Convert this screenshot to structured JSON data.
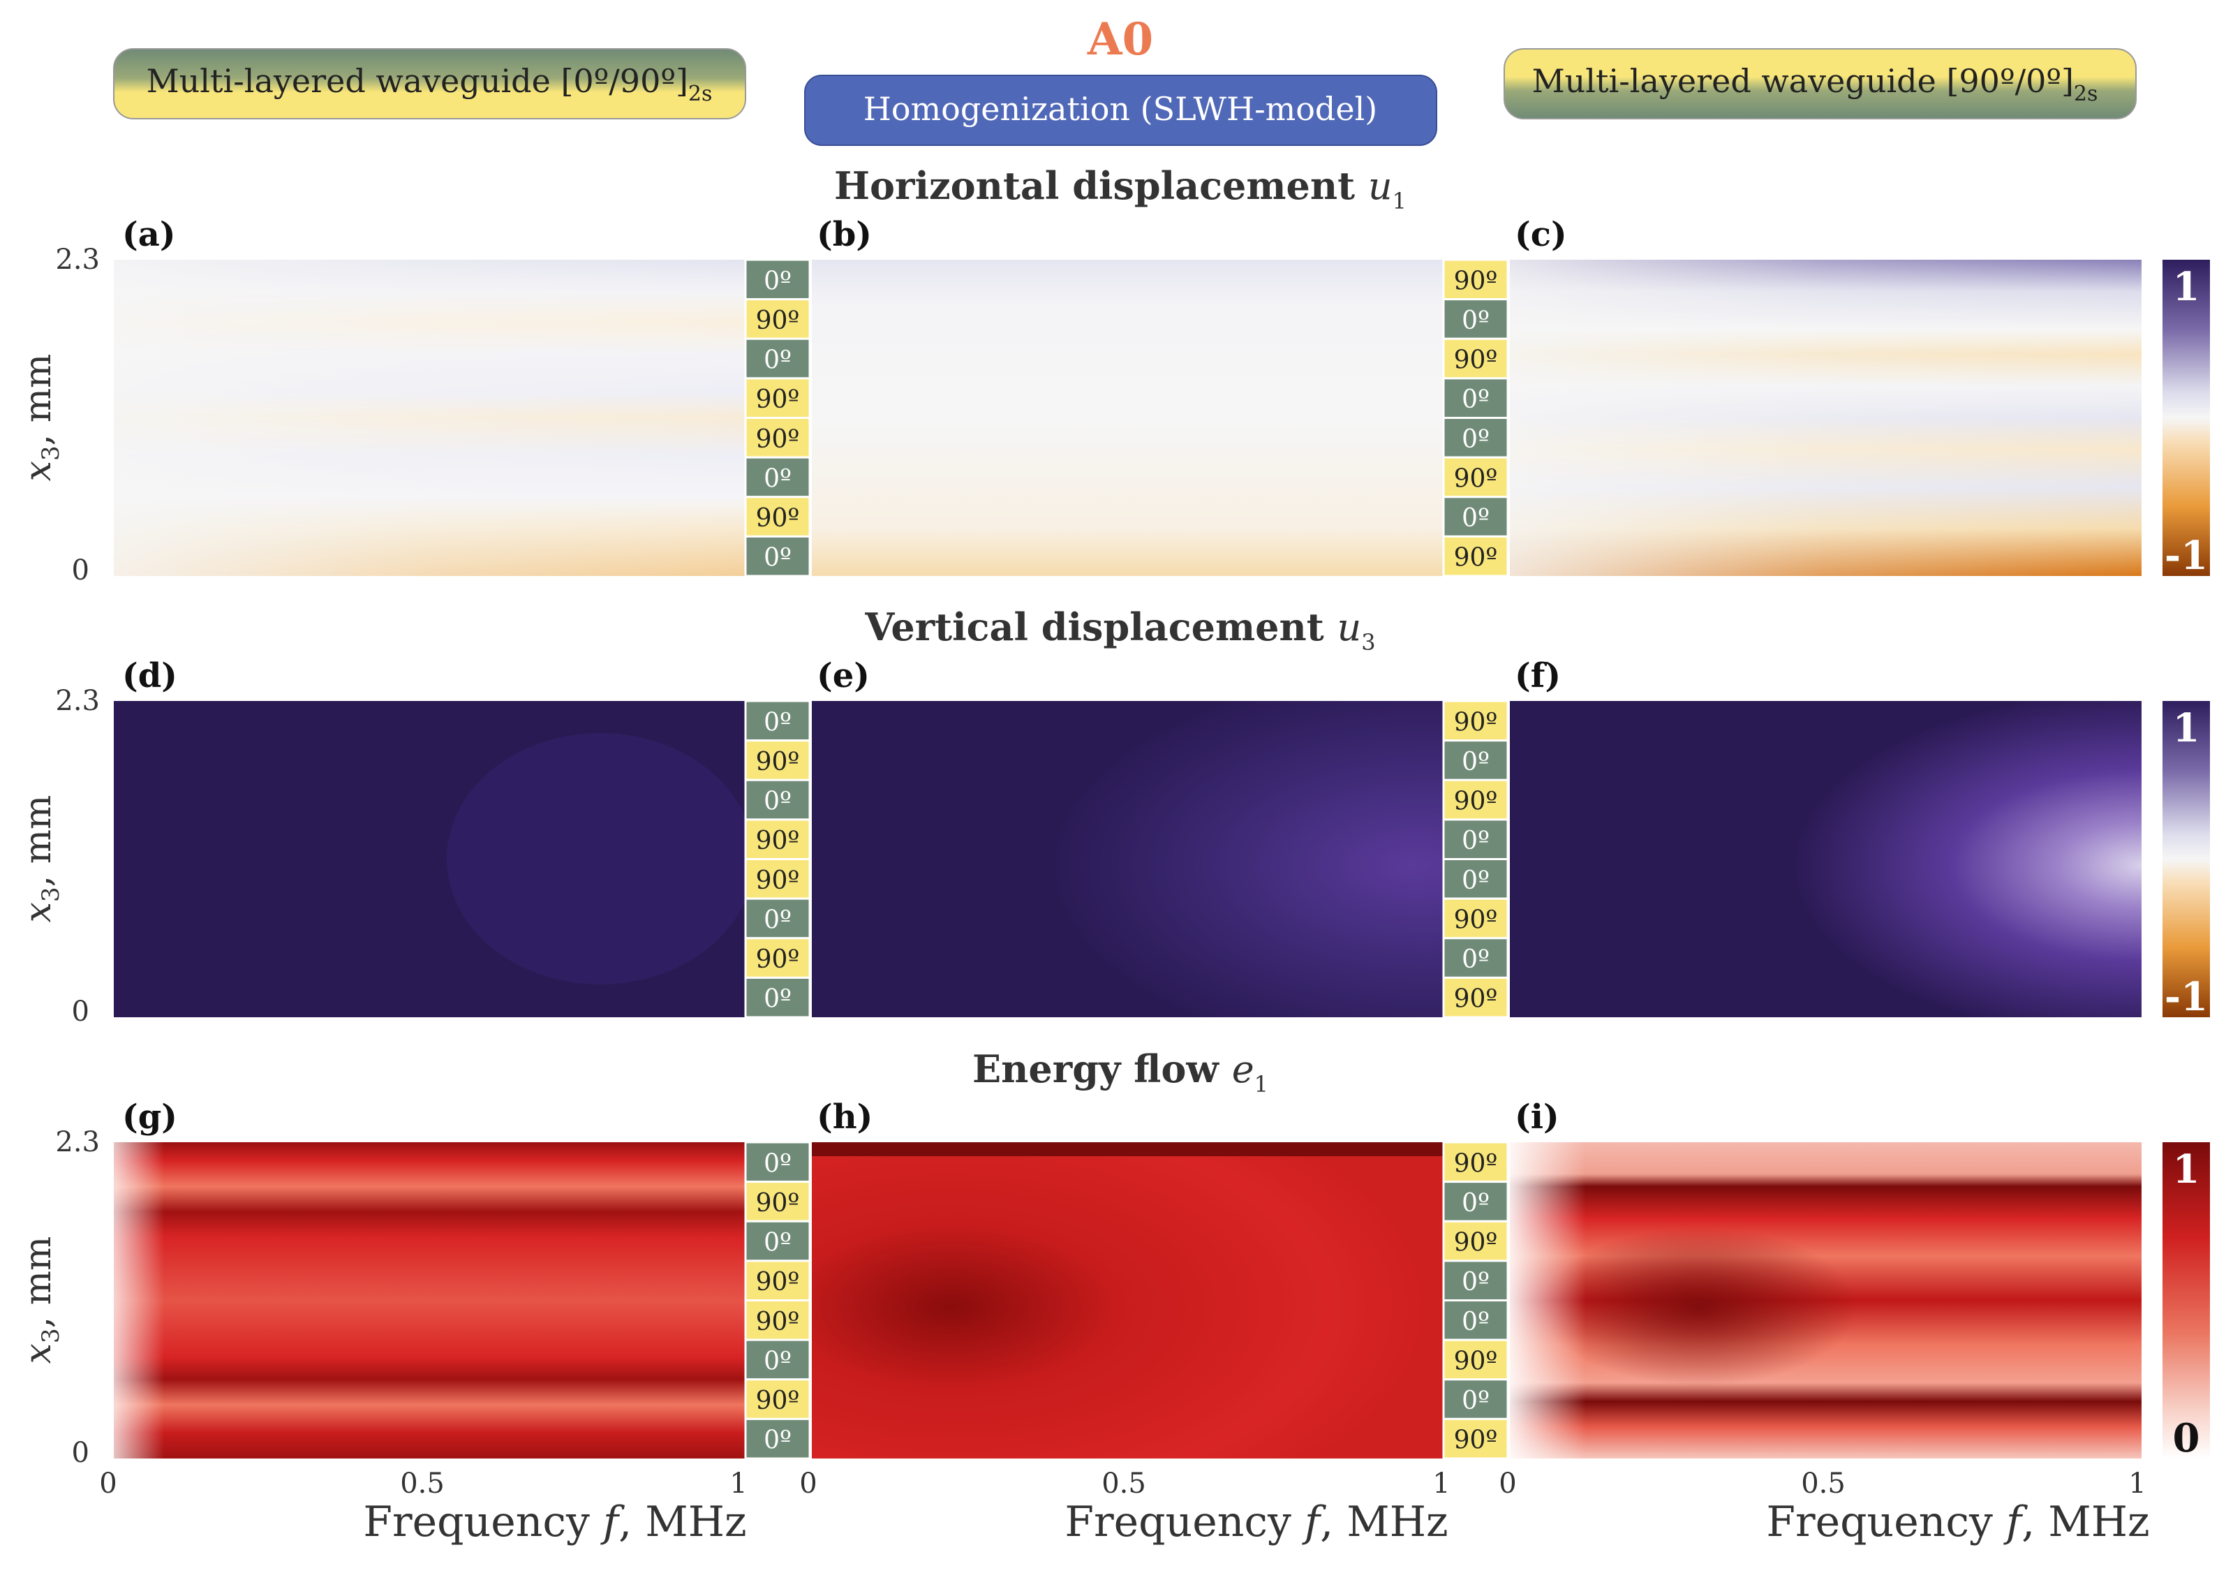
{
  "header": {
    "mode_label": "A0",
    "mode_color": "#ec7a50",
    "left_box": "Multi-layered waveguide [0º/90º]",
    "left_box_sub": "2s",
    "center_box": "Homogenization (SLWH-model)",
    "right_box": "Multi-layered waveguide [90º/0º]",
    "right_box_sub": "2s"
  },
  "colors": {
    "green": "#6f8a76",
    "yellow": "#f8e67a",
    "blue_box": "#5068b8",
    "div_neg": "#c55f00",
    "div_pos": "#2f1e5e",
    "energy_high": "#7a0b0b",
    "energy_low": "#ffffff"
  },
  "rows": [
    {
      "title": "Horizontal displacement ",
      "symbol": "u",
      "sub": "1",
      "labels": [
        "(a)",
        "(b)",
        "(c)"
      ],
      "colorbar": {
        "max": "1",
        "min": "-1"
      }
    },
    {
      "title": "Vertical displacement ",
      "symbol": "u",
      "sub": "3",
      "labels": [
        "(d)",
        "(e)",
        "(f)"
      ],
      "colorbar": {
        "max": "1",
        "min": "-1"
      }
    },
    {
      "title": "Energy flow ",
      "symbol": "e",
      "sub": "1",
      "labels": [
        "(g)",
        "(h)",
        "(i)"
      ],
      "colorbar": {
        "max": "1",
        "min": "0"
      }
    }
  ],
  "layers_left": [
    "0º",
    "90º",
    "0º",
    "90º",
    "90º",
    "0º",
    "90º",
    "0º"
  ],
  "layers_right": [
    "90º",
    "0º",
    "90º",
    "0º",
    "0º",
    "90º",
    "0º",
    "90º"
  ],
  "chart_data": {
    "type": "heatmap",
    "xlabel_text": "Frequency ",
    "xlabel_var": "f",
    "xlabel_unit": ", MHz",
    "x_ticks": [
      "0",
      "0.5",
      "1"
    ],
    "xlim": [
      0,
      1
    ],
    "ylabel_var": "x",
    "ylabel_sub": "3",
    "ylabel_unit": ", mm",
    "y_ticks": [
      "2.3",
      "0"
    ],
    "ylim": [
      0,
      2.3
    ],
    "panels": [
      "(a)",
      "(b)",
      "(c)",
      "(d)",
      "(e)",
      "(f)",
      "(g)",
      "(h)",
      "(i)"
    ]
  }
}
